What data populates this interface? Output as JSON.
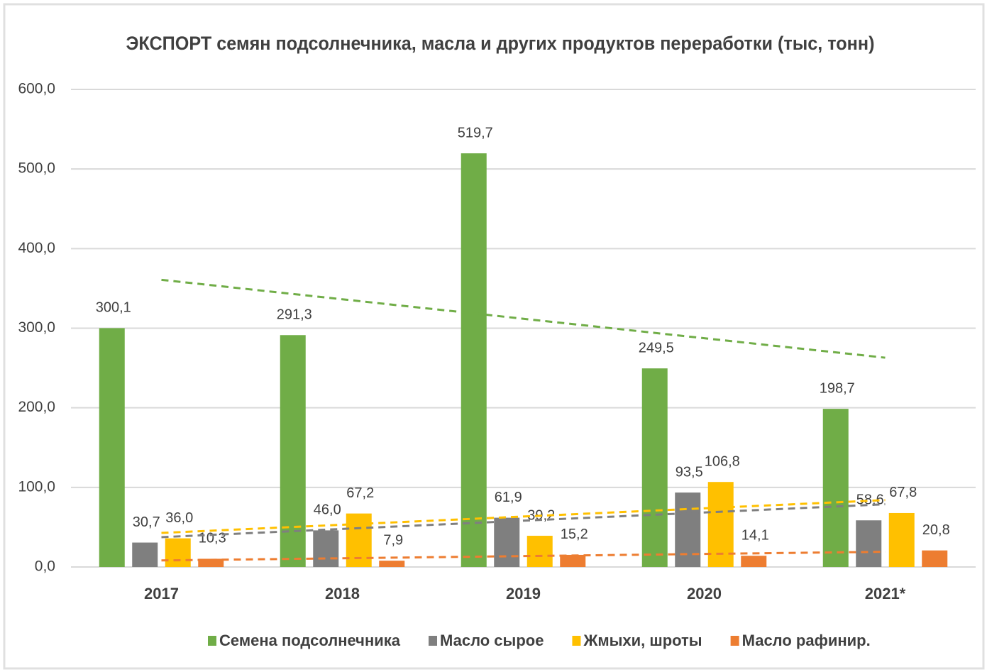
{
  "chart_data": {
    "type": "bar",
    "title": "ЭКСПОРТ семян подсолнечника, масла и других продуктов переработки (тыс, тонн)",
    "categories": [
      "2017",
      "2018",
      "2019",
      "2020",
      "2021*"
    ],
    "series": [
      {
        "name": "Семена подсолнечника",
        "color": "#70ad47",
        "values": [
          300.1,
          291.3,
          519.7,
          249.5,
          198.7
        ],
        "value_labels": [
          "300,1",
          "291,3",
          "519,7",
          "249,5",
          "198,7"
        ]
      },
      {
        "name": "Масло сырое",
        "color": "#7f7f7f",
        "values": [
          30.7,
          46.0,
          61.9,
          93.5,
          58.6
        ],
        "value_labels": [
          "30,7",
          "46,0",
          "61,9",
          "93,5",
          "58,6"
        ]
      },
      {
        "name": "Жмыхи, шроты",
        "color": "#ffc000",
        "values": [
          36.0,
          67.2,
          39.2,
          106.8,
          67.8
        ],
        "value_labels": [
          "36,0",
          "67,2",
          "39,2",
          "106,8",
          "67,8"
        ]
      },
      {
        "name": "Масло рафинир.",
        "color": "#ed7d31",
        "values": [
          10.3,
          7.9,
          15.2,
          14.1,
          20.8
        ],
        "value_labels": [
          "10,3",
          "7,9",
          "15,2",
          "14,1",
          "20,8"
        ]
      }
    ],
    "ylim": [
      0,
      600
    ],
    "yticks": [
      {
        "value": 0,
        "label": "0,0"
      },
      {
        "value": 100,
        "label": "100,0"
      },
      {
        "value": 200,
        "label": "200,0"
      },
      {
        "value": 300,
        "label": "300,0"
      },
      {
        "value": 400,
        "label": "400,0"
      },
      {
        "value": 500,
        "label": "500,0"
      },
      {
        "value": 600,
        "label": "600,0"
      }
    ],
    "grid": true,
    "trendlines": true,
    "legend": "bottom"
  }
}
